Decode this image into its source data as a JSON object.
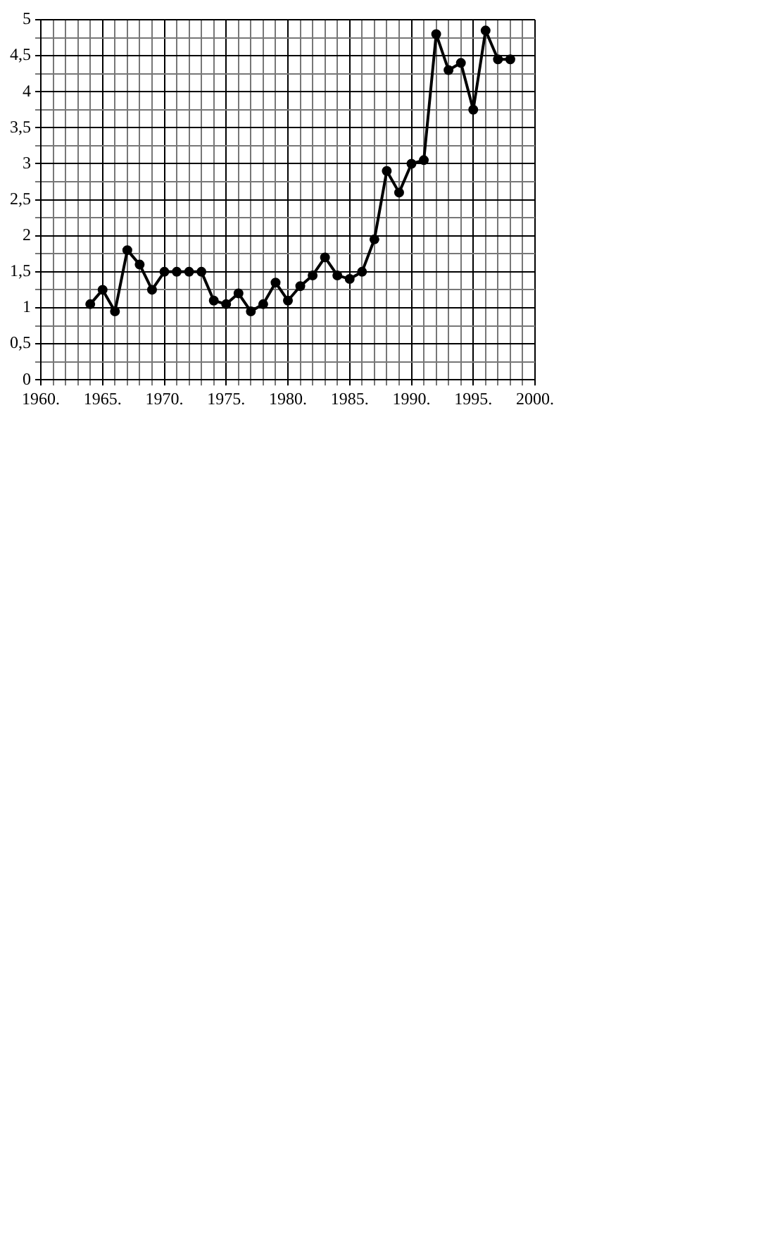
{
  "chart_data": {
    "type": "line",
    "x": [
      1964,
      1965,
      1966,
      1967,
      1968,
      1969,
      1970,
      1971,
      1972,
      1973,
      1974,
      1975,
      1976,
      1977,
      1978,
      1979,
      1980,
      1981,
      1982,
      1983,
      1984,
      1985,
      1986,
      1987,
      1988,
      1989,
      1990,
      1991,
      1992,
      1993,
      1994,
      1995,
      1996,
      1997,
      1998
    ],
    "series": [
      {
        "color": "#000000",
        "values": [
          1.05,
          1.25,
          0.95,
          1.8,
          1.6,
          1.25,
          1.5,
          1.5,
          1.5,
          1.5,
          1.1,
          1.05,
          1.2,
          0.95,
          1.05,
          1.35,
          1.1,
          1.3,
          1.45,
          1.7,
          1.45,
          1.4,
          1.5,
          1.95,
          2.9,
          2.6,
          3.0,
          3.05,
          4.8,
          4.3,
          4.4,
          3.75,
          4.85,
          4.45,
          4.45
        ]
      }
    ],
    "xlim": [
      1960,
      2000
    ],
    "xticks": [
      {
        "value": 1960,
        "label": "1960."
      },
      {
        "value": 1961,
        "label": null
      },
      {
        "value": 1962,
        "label": null
      },
      {
        "value": 1963,
        "label": null
      },
      {
        "value": 1964,
        "label": null
      },
      {
        "value": 1965,
        "label": "1965."
      },
      {
        "value": 1966,
        "label": null
      },
      {
        "value": 1967,
        "label": null
      },
      {
        "value": 1968,
        "label": null
      },
      {
        "value": 1969,
        "label": null
      },
      {
        "value": 1970,
        "label": "1970."
      },
      {
        "value": 1971,
        "label": null
      },
      {
        "value": 1972,
        "label": null
      },
      {
        "value": 1973,
        "label": null
      },
      {
        "value": 1974,
        "label": null
      },
      {
        "value": 1975,
        "label": "1975."
      },
      {
        "value": 1976,
        "label": null
      },
      {
        "value": 1977,
        "label": null
      },
      {
        "value": 1978,
        "label": null
      },
      {
        "value": 1979,
        "label": null
      },
      {
        "value": 1980,
        "label": "1980."
      },
      {
        "value": 1981,
        "label": null
      },
      {
        "value": 1982,
        "label": null
      },
      {
        "value": 1983,
        "label": null
      },
      {
        "value": 1984,
        "label": null
      },
      {
        "value": 1985,
        "label": "1985."
      },
      {
        "value": 1986,
        "label": null
      },
      {
        "value": 1987,
        "label": null
      },
      {
        "value": 1988,
        "label": null
      },
      {
        "value": 1989,
        "label": null
      },
      {
        "value": 1990,
        "label": "1990."
      },
      {
        "value": 1991,
        "label": null
      },
      {
        "value": 1992,
        "label": null
      },
      {
        "value": 1993,
        "label": null
      },
      {
        "value": 1994,
        "label": null
      },
      {
        "value": 1995,
        "label": "1995."
      },
      {
        "value": 1996,
        "label": null
      },
      {
        "value": 1997,
        "label": null
      },
      {
        "value": 1998,
        "label": null
      },
      {
        "value": 1999,
        "label": null
      },
      {
        "value": 2000,
        "label": "2000."
      }
    ],
    "ylim": [
      0,
      5
    ],
    "yticks": [
      0,
      {
        "value": 0.25,
        "label": null
      },
      {
        "value": 0.5,
        "label": "0,5"
      },
      {
        "value": 0.75,
        "label": null
      },
      1,
      {
        "value": 1.25,
        "label": null
      },
      {
        "value": 1.5,
        "label": "1,5"
      },
      {
        "value": 1.75,
        "label": null
      },
      2,
      {
        "value": 2.25,
        "label": null
      },
      {
        "value": 2.5,
        "label": "2,5"
      },
      {
        "value": 2.75,
        "label": null
      },
      3,
      {
        "value": 3.25,
        "label": null
      },
      {
        "value": 3.5,
        "label": "3,5"
      },
      {
        "value": 3.75,
        "label": null
      },
      4,
      {
        "value": 4.25,
        "label": null
      },
      {
        "value": 4.5,
        "label": "4,5"
      },
      {
        "value": 4.75,
        "label": null
      },
      5
    ],
    "grid": true,
    "legend": false,
    "marker": "circle",
    "line_style": "solid"
  }
}
